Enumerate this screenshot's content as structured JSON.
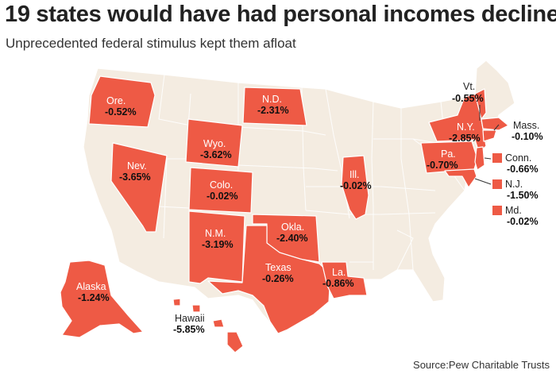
{
  "title": "19 states would have had personal incomes decline",
  "subtitle": "Unprecedented federal stimulus kept them afloat",
  "source": "Source:Pew Charitable Trusts",
  "colors": {
    "highlight": "#ee5a45",
    "base": "#f4ece1",
    "border": "#ffffff",
    "text": "#222222"
  },
  "labels": {
    "ore": {
      "name": "Ore.",
      "value": "-0.52%"
    },
    "nev": {
      "name": "Nev.",
      "value": "-3.65%"
    },
    "wyo": {
      "name": "Wyo.",
      "value": "-3.62%"
    },
    "colo": {
      "name": "Colo.",
      "value": "-0.02%"
    },
    "nm": {
      "name": "N.M.",
      "value": "-3.19%"
    },
    "nd": {
      "name": "N.D.",
      "value": "-2.31%"
    },
    "okla": {
      "name": "Okla.",
      "value": "-2.40%"
    },
    "texas": {
      "name": "Texas",
      "value": "-0.26%"
    },
    "la": {
      "name": "La.",
      "value": "-0.86%"
    },
    "ill": {
      "name": "Ill.",
      "value": "-0.02%"
    },
    "ny": {
      "name": "N.Y.",
      "value": "-2.85%"
    },
    "pa": {
      "name": "Pa.",
      "value": "-0.70%"
    },
    "vt": {
      "name": "Vt.",
      "value": "-0.55%"
    },
    "mass": {
      "name": "Mass.",
      "value": "-0.10%"
    },
    "conn": {
      "name": "Conn.",
      "value": "-0.66%"
    },
    "nj": {
      "name": "N.J.",
      "value": "-1.50%"
    },
    "md": {
      "name": "Md.",
      "value": "-0.02%"
    },
    "alaska": {
      "name": "Alaska",
      "value": "-1.24%"
    },
    "hawaii": {
      "name": "Hawaii",
      "value": "-5.85%"
    }
  }
}
